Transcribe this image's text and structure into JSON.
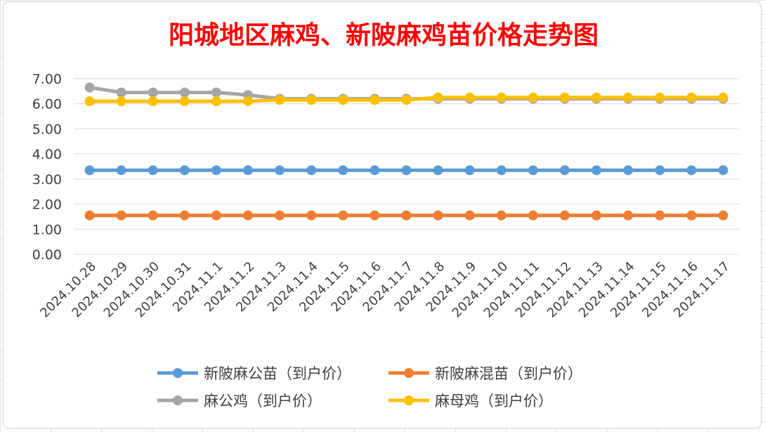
{
  "chart_data": {
    "type": "line",
    "title": "阳城地区麻鸡、新陂麻鸡苗价格走势图",
    "xlabel": "",
    "ylabel": "",
    "ylim": [
      0,
      7
    ],
    "yticks": [
      "0.00",
      "1.00",
      "2.00",
      "3.00",
      "4.00",
      "5.00",
      "6.00",
      "7.00"
    ],
    "grid": true,
    "legend_position": "bottom",
    "categories": [
      "2024.10.28",
      "2024.10.29",
      "2024.10.30",
      "2024.10.31",
      "2024.11.1",
      "2024.11.2",
      "2024.11.3",
      "2024.11.4",
      "2024.11.5",
      "2024.11.6",
      "2024.11.7",
      "2024.11.8",
      "2024.11.9",
      "2024.11.10",
      "2024.11.11",
      "2024.11.12",
      "2024.11.13",
      "2024.11.14",
      "2024.11.15",
      "2024.11.16",
      "2024.11.17"
    ],
    "series": [
      {
        "name": "新陂麻公苗（到户价）",
        "color": "#5b9bd5",
        "values": [
          3.35,
          3.35,
          3.35,
          3.35,
          3.35,
          3.35,
          3.35,
          3.35,
          3.35,
          3.35,
          3.35,
          3.35,
          3.35,
          3.35,
          3.35,
          3.35,
          3.35,
          3.35,
          3.35,
          3.35,
          3.35
        ]
      },
      {
        "name": "新陂麻混苗（到户价）",
        "color": "#ed7d31",
        "values": [
          1.55,
          1.55,
          1.55,
          1.55,
          1.55,
          1.55,
          1.55,
          1.55,
          1.55,
          1.55,
          1.55,
          1.55,
          1.55,
          1.55,
          1.55,
          1.55,
          1.55,
          1.55,
          1.55,
          1.55,
          1.55
        ]
      },
      {
        "name": "麻公鸡（到户价）",
        "color": "#a5a5a5",
        "values": [
          6.65,
          6.45,
          6.45,
          6.45,
          6.45,
          6.35,
          6.2,
          6.2,
          6.2,
          6.2,
          6.2,
          6.2,
          6.2,
          6.2,
          6.2,
          6.2,
          6.2,
          6.2,
          6.2,
          6.2,
          6.2
        ]
      },
      {
        "name": "麻母鸡（到户价）",
        "color": "#ffc000",
        "values": [
          6.1,
          6.1,
          6.1,
          6.1,
          6.1,
          6.1,
          6.15,
          6.15,
          6.15,
          6.15,
          6.15,
          6.25,
          6.25,
          6.25,
          6.25,
          6.25,
          6.25,
          6.25,
          6.25,
          6.25,
          6.25
        ]
      }
    ],
    "legend_order": [
      0,
      1,
      2,
      3
    ]
  }
}
